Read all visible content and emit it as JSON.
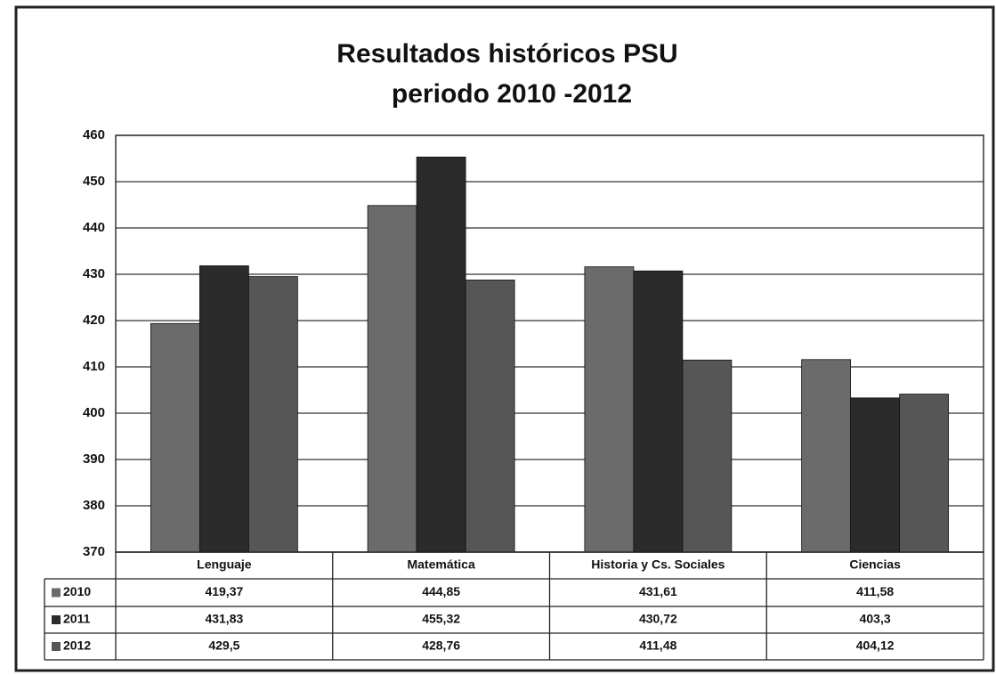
{
  "chart_data": {
    "type": "bar",
    "title": [
      "Resultados históricos PSU",
      "periodo 2010 -2012"
    ],
    "categories": [
      "Lenguaje",
      "Matemática",
      "Historia y Cs. Sociales",
      "Ciencias"
    ],
    "series": [
      {
        "name": "2010",
        "color": "#6b6b6b",
        "values": [
          419.37,
          444.85,
          431.61,
          411.58
        ],
        "value_labels": [
          "419,37",
          "444,85",
          "431,61",
          "411,58"
        ]
      },
      {
        "name": "2011",
        "color": "#2b2b2b",
        "values": [
          431.83,
          455.32,
          430.72,
          403.3
        ],
        "value_labels": [
          "431,83",
          "455,32",
          "430,72",
          "403,3"
        ]
      },
      {
        "name": "2012",
        "color": "#565656",
        "values": [
          429.5,
          428.76,
          411.48,
          404.12
        ],
        "value_labels": [
          "429,5",
          "428,76",
          "411,48",
          "404,12"
        ]
      }
    ],
    "ylim": [
      370,
      460
    ],
    "yticks": [
      370,
      380,
      390,
      400,
      410,
      420,
      430,
      440,
      450,
      460
    ],
    "grid": true
  }
}
